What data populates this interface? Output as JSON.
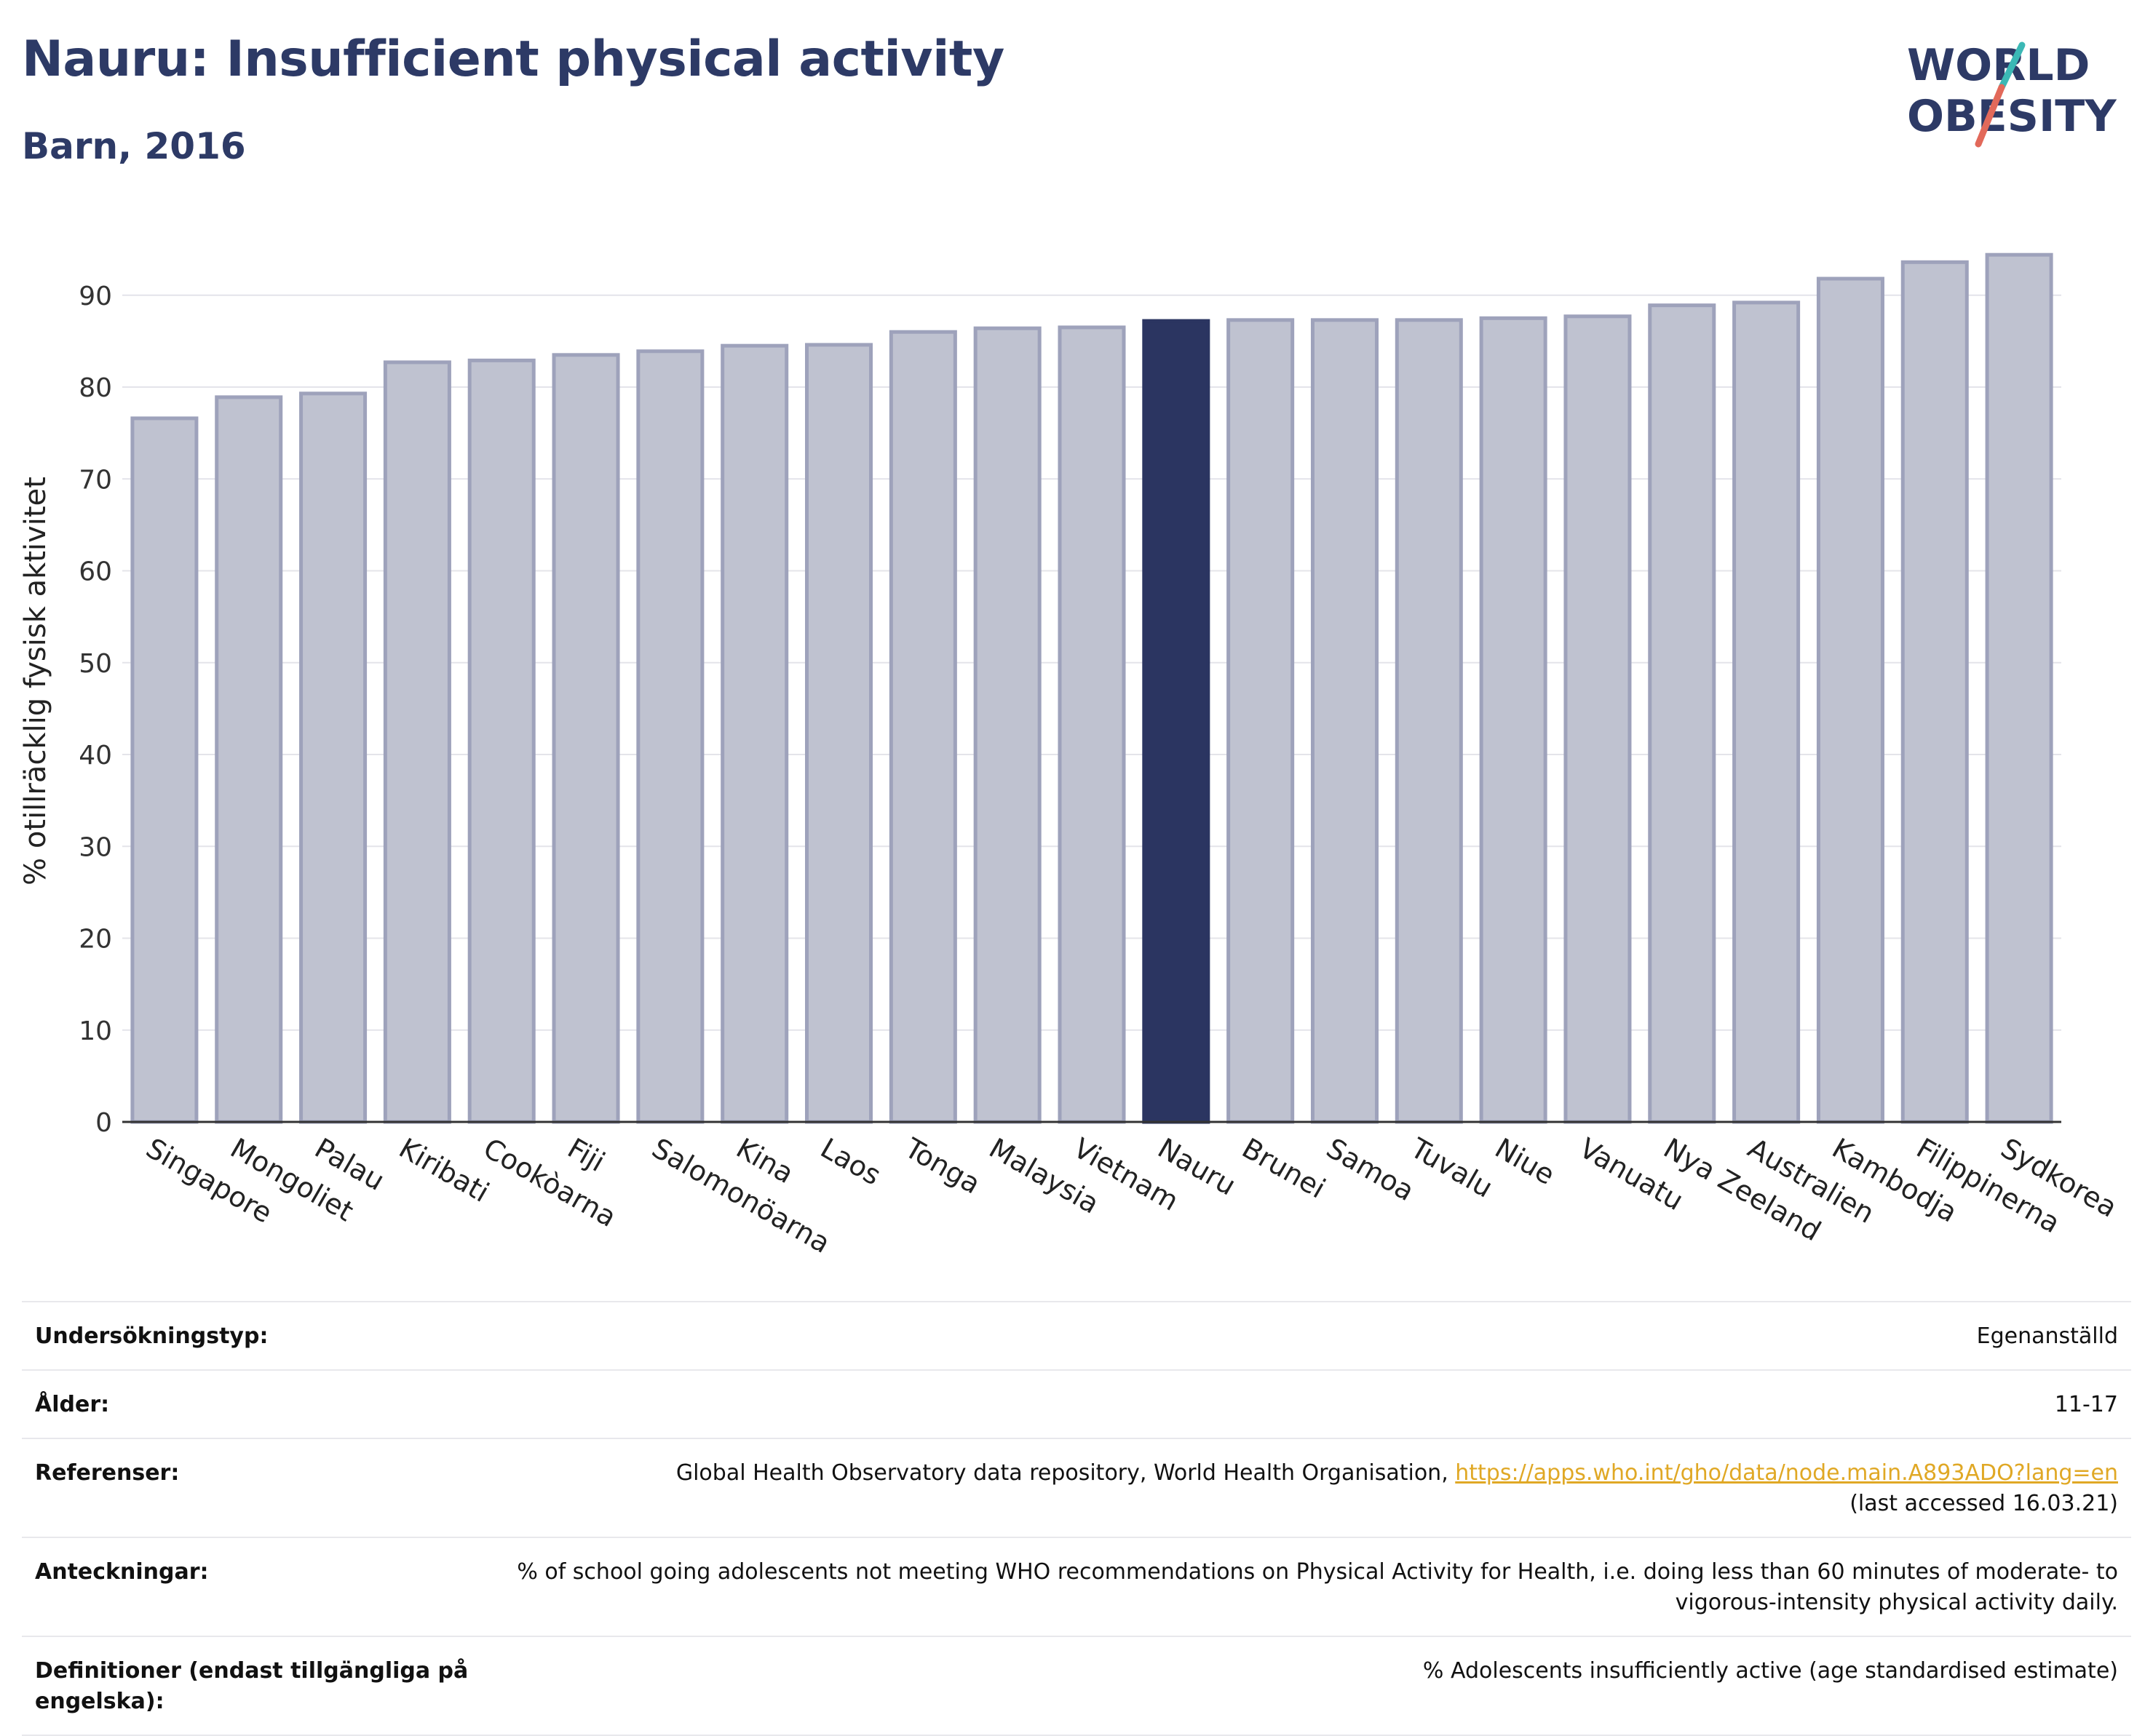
{
  "header": {
    "title": "Nauru: Insufficient physical activity",
    "subtitle": "Barn, 2016"
  },
  "logo": {
    "line1": "WORLD",
    "line2": "OBESITY",
    "colors": {
      "text": "#2d3a66",
      "slash_top": "#3bb8b5",
      "slash_bottom": "#e2695a"
    }
  },
  "chart_data": {
    "type": "bar",
    "title": "Nauru: Insufficient physical activity",
    "subtitle": "Barn, 2016",
    "xlabel": "",
    "ylabel": "% otillräcklig fysisk aktivitet",
    "ylim": [
      0,
      96
    ],
    "yticks": [
      0,
      10,
      20,
      30,
      40,
      50,
      60,
      70,
      80,
      90
    ],
    "grid": true,
    "highlight": "Nauru",
    "colors": {
      "bar": "#bfc2d0",
      "bar_border": "#9ea2bb",
      "highlight": "#2b3561",
      "grid": "#e4e4ea",
      "axis": "#333333"
    },
    "categories": [
      "Singapore",
      "Mongoliet",
      "Palau",
      "Kiribati",
      "Cookòarna",
      "Fiji",
      "Salomonöarna",
      "Kina",
      "Laos",
      "Tonga",
      "Malaysia",
      "Vietnam",
      "Nauru",
      "Brunei",
      "Samoa",
      "Tuvalu",
      "Niue",
      "Vanuatu",
      "Nya Zeeland",
      "Australien",
      "Kambodja",
      "Filippinerna",
      "Sydkorea"
    ],
    "values": [
      76.6,
      78.9,
      79.3,
      82.7,
      82.9,
      83.5,
      83.9,
      84.5,
      84.6,
      86.0,
      86.4,
      86.5,
      87.2,
      87.3,
      87.3,
      87.3,
      87.5,
      87.7,
      88.9,
      89.2,
      91.8,
      93.6,
      94.4
    ]
  },
  "info": {
    "rows": [
      {
        "key": "Undersökningstyp:",
        "value": "Egenanställd"
      },
      {
        "key": "Ålder:",
        "value": "11-17"
      },
      {
        "key": "Referenser:",
        "value": "Global Health Observatory data repository, World Health Organisation, ",
        "link": "https://apps.who.int/gho/data/node.main.A893ADO?lang=en",
        "value2": "(last accessed 16.03.21)"
      },
      {
        "key": "Anteckningar:",
        "value": "% of school going adolescents not meeting WHO recommendations on Physical Activity for Health, i.e. doing less than 60 minutes of moderate- to vigorous-intensity physical activity daily."
      },
      {
        "key": "Definitioner (endast tillgängliga på engelska):",
        "value": "% Adolescents insufficiently active (age standardised estimate)"
      }
    ]
  }
}
